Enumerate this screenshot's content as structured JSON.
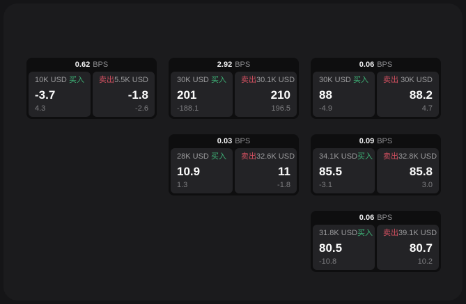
{
  "labels": {
    "bps": "BPS",
    "buy": "买入",
    "sell": "卖出"
  },
  "cards": [
    {
      "bps": "0.62",
      "col": 1,
      "row": 1,
      "buy": {
        "amount": "10K USD",
        "big": "-3.7",
        "small": "4.3"
      },
      "sell": {
        "amount": "5.5K USD",
        "big": "-1.8",
        "small": "-2.6"
      }
    },
    {
      "bps": "2.92",
      "col": 2,
      "row": 1,
      "buy": {
        "amount": "30K USD",
        "big": "201",
        "small": "-188.1"
      },
      "sell": {
        "amount": "30.1K USD",
        "big": "210",
        "small": "196.5"
      }
    },
    {
      "bps": "0.06",
      "col": 3,
      "row": 1,
      "buy": {
        "amount": "30K USD",
        "big": "88",
        "small": "-4.9"
      },
      "sell": {
        "amount": "30K USD",
        "big": "88.2",
        "small": "4.7"
      }
    },
    {
      "bps": "0.03",
      "col": 2,
      "row": 2,
      "buy": {
        "amount": "28K USD",
        "big": "10.9",
        "small": "1.3"
      },
      "sell": {
        "amount": "32.6K USD",
        "big": "11",
        "small": "-1.8"
      }
    },
    {
      "bps": "0.09",
      "col": 3,
      "row": 2,
      "buy": {
        "amount": "34.1K USD",
        "big": "85.5",
        "small": "-3.1"
      },
      "sell": {
        "amount": "32.8K USD",
        "big": "85.8",
        "small": "3.0"
      }
    },
    {
      "bps": "0.06",
      "col": 3,
      "row": 3,
      "buy": {
        "amount": "31.8K USD",
        "big": "80.5",
        "small": "-10.8"
      },
      "sell": {
        "amount": "39.1K USD",
        "big": "80.7",
        "small": "10.2"
      }
    }
  ],
  "colors": {
    "background": "#151517",
    "surface": "#1b1b1d",
    "card": "#0e0e0f",
    "panel": "#232326",
    "buy_green": "#3eb377",
    "sell_red": "#d25060"
  }
}
